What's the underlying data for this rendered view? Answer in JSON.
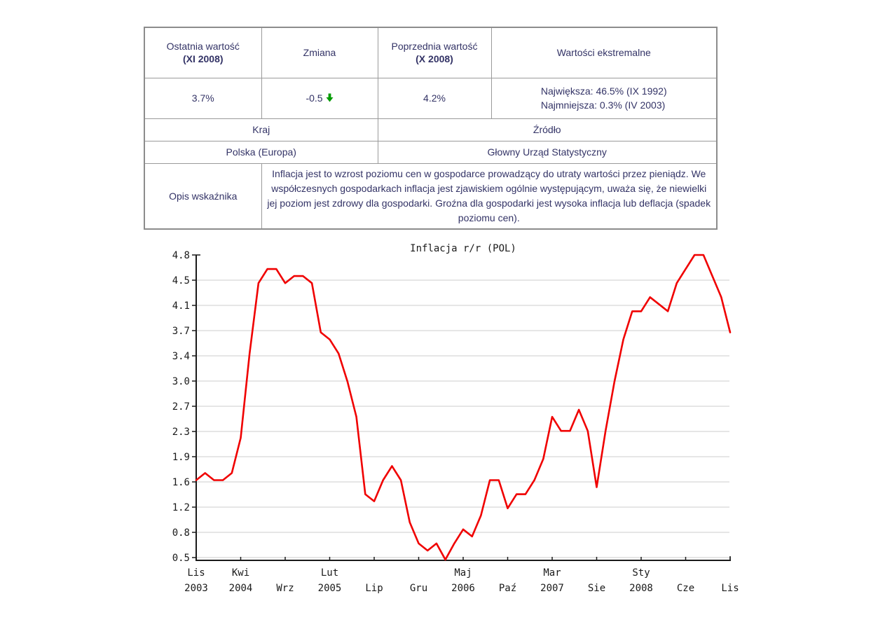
{
  "table": {
    "headers": {
      "last_value_label": "Ostatnia wartość",
      "last_value_period": "(XI 2008)",
      "change_label": "Zmiana",
      "previous_value_label": "Poprzednia wartość",
      "previous_value_period": "(X 2008)",
      "extremes_label": "Wartości ekstremalne"
    },
    "values": {
      "last_value": "3.7%",
      "change": "-0.5",
      "change_direction": "down",
      "previous_value": "4.2%",
      "extreme_max": "Największa: 46.5% (IX 1992)",
      "extreme_min": "Najmniejsza: 0.3% (IV 2003)"
    },
    "country_header": "Kraj",
    "country_value": "Polska (Europa)",
    "source_header": "Źródło",
    "source_value": "Głowny Urząd Statystyczny",
    "description_header": "Opis wskaźnika",
    "description_text": "Inflacja jest to wzrost poziomu cen w gospodarce prowadzący do utraty wartości przez pieniądz. We współczesnych gospodarkach inflacja jest zjawiskiem ogólnie występującym, uważa się, że niewielki jej poziom jest zdrowy dla gospodarki. Groźna dla gospodarki jest wysoka inflacja lub deflacja (spadek poziomu cen)."
  },
  "colors": {
    "text_navy": "#333366",
    "line_red": "#f00000",
    "arrow_green": "#009a00",
    "grid_gray": "#cccccc",
    "axis_black": "#1a1a1a"
  },
  "chart_data": {
    "type": "line",
    "title": "Inflacja r/r (POL)",
    "xlabel": "",
    "ylabel": "",
    "frequency": "monthly",
    "x_start": "Lis 2003",
    "x_end": "Lis 2008",
    "ylim": [
      0.5,
      4.8
    ],
    "grid": "horizontal",
    "legend_position": "none",
    "y_tick_labels": [
      "4.8",
      "4.5",
      "4.1",
      "3.7",
      "3.4",
      "3.0",
      "2.7",
      "2.3",
      "1.9",
      "1.6",
      "1.2",
      "0.8",
      "0.5"
    ],
    "x_ticks": [
      {
        "month": "Lis",
        "year": "2003"
      },
      {
        "month": "Kwi",
        "year": "2004"
      },
      {
        "month": "Wrz",
        "year": ""
      },
      {
        "month": "Lut",
        "year": "2005"
      },
      {
        "month": "Lip",
        "year": ""
      },
      {
        "month": "Gru",
        "year": ""
      },
      {
        "month": "Maj",
        "year": "2006"
      },
      {
        "month": "Paź",
        "year": ""
      },
      {
        "month": "Mar",
        "year": "2007"
      },
      {
        "month": "Sie",
        "year": ""
      },
      {
        "month": "Sty",
        "year": "2008"
      },
      {
        "month": "Cze",
        "year": ""
      },
      {
        "month": "Lis",
        "year": ""
      }
    ],
    "series": [
      {
        "name": "Inflacja r/r (POL)",
        "color": "#f00000",
        "values": [
          1.6,
          1.7,
          1.6,
          1.6,
          1.7,
          2.2,
          3.4,
          4.4,
          4.6,
          4.6,
          4.4,
          4.5,
          4.5,
          4.4,
          3.7,
          3.6,
          3.4,
          3.0,
          2.5,
          1.4,
          1.3,
          1.6,
          1.8,
          1.6,
          1.0,
          0.7,
          0.6,
          0.7,
          0.4,
          0.7,
          0.9,
          0.8,
          1.1,
          1.6,
          1.6,
          1.2,
          1.4,
          1.4,
          1.6,
          1.9,
          2.5,
          2.3,
          2.3,
          2.6,
          2.3,
          1.5,
          2.3,
          3.0,
          3.6,
          4.0,
          4.0,
          4.2,
          4.1,
          4.0,
          4.4,
          4.6,
          4.8,
          4.8,
          4.5,
          4.2,
          3.7
        ]
      }
    ]
  }
}
